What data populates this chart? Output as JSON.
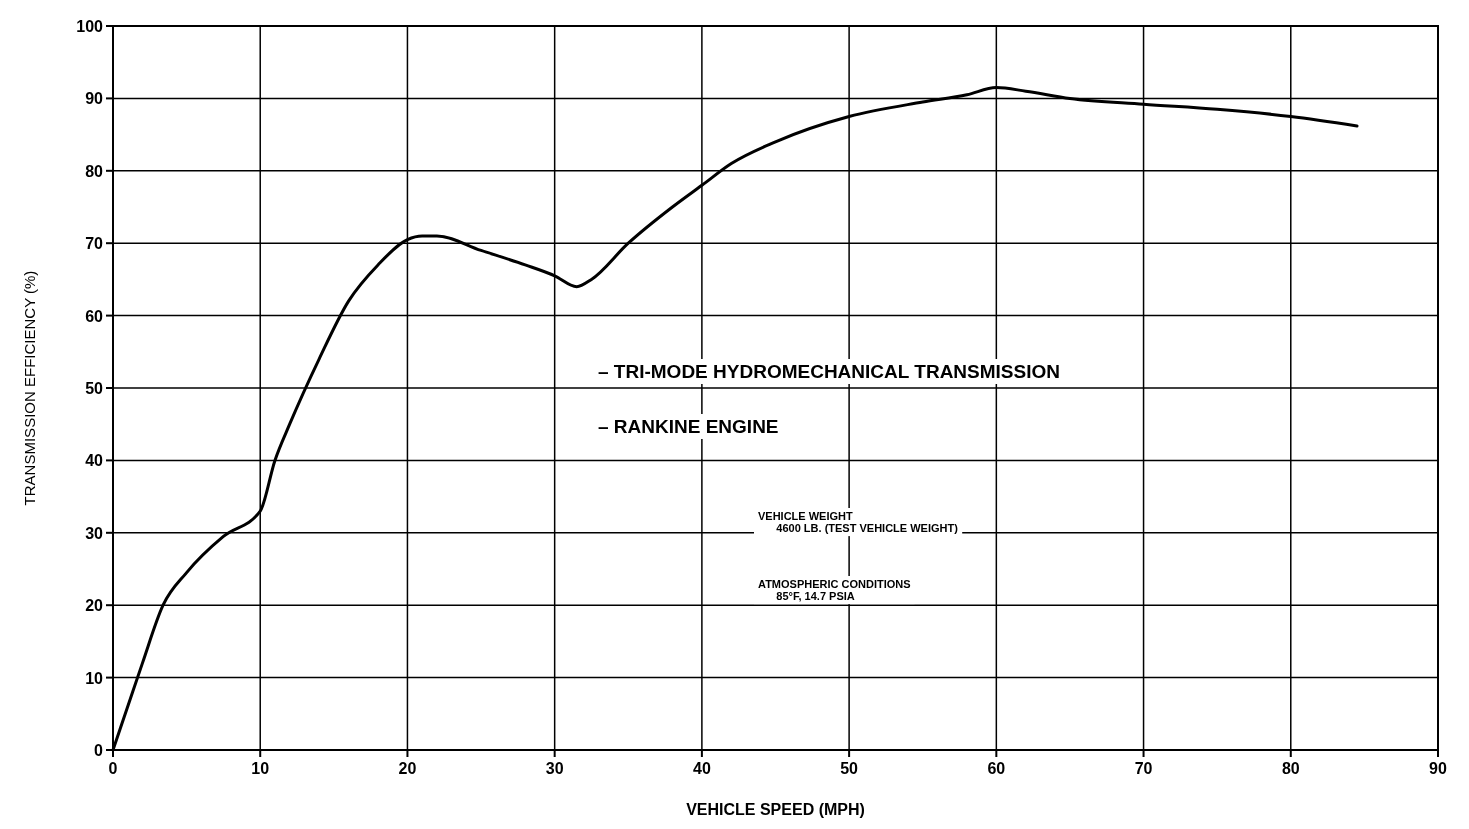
{
  "chart_data": {
    "type": "line",
    "xlabel": "VEHICLE SPEED (MPH)",
    "ylabel": "TRANSMISSION EFFICIENCY (%)",
    "xlim": [
      0,
      90
    ],
    "xticks": [
      0,
      10,
      20,
      30,
      40,
      50,
      60,
      70,
      80,
      90
    ],
    "ylim": [
      0,
      100
    ],
    "yticks": [
      0,
      10,
      20,
      30,
      40,
      50,
      60,
      70,
      80,
      90,
      100
    ],
    "grid": true,
    "marker": "none",
    "line_style": "solid",
    "annotations": [
      "– TRI-MODE HYDROMECHANICAL TRANSMISSION",
      "– RANKINE ENGINE",
      "VEHICLE WEIGHT\n      4600 LB. (TEST VEHICLE WEIGHT)",
      "ATMOSPHERIC CONDITIONS\n      85°F, 14.7 PSIA"
    ],
    "series": [
      {
        "color": "#000000",
        "x": [
          0,
          1,
          2,
          3.4,
          5,
          7.5,
          10,
          11,
          12,
          14,
          16,
          18,
          20,
          21,
          22,
          25,
          28,
          30,
          31.5,
          32.5,
          35,
          38,
          40,
          42,
          45,
          50,
          55,
          58,
          60,
          62,
          65,
          70,
          75,
          80,
          84.5
        ],
        "values": [
          0,
          6,
          12,
          20,
          24.5,
          29.5,
          33,
          40,
          45,
          54,
          62,
          67,
          70.5,
          71,
          71,
          69,
          67,
          65.5,
          64,
          65,
          70,
          75,
          78,
          81,
          84,
          87.5,
          89.5,
          90.5,
          91.5,
          91,
          90,
          89.2,
          88.5,
          87.5,
          86.2
        ]
      }
    ]
  }
}
